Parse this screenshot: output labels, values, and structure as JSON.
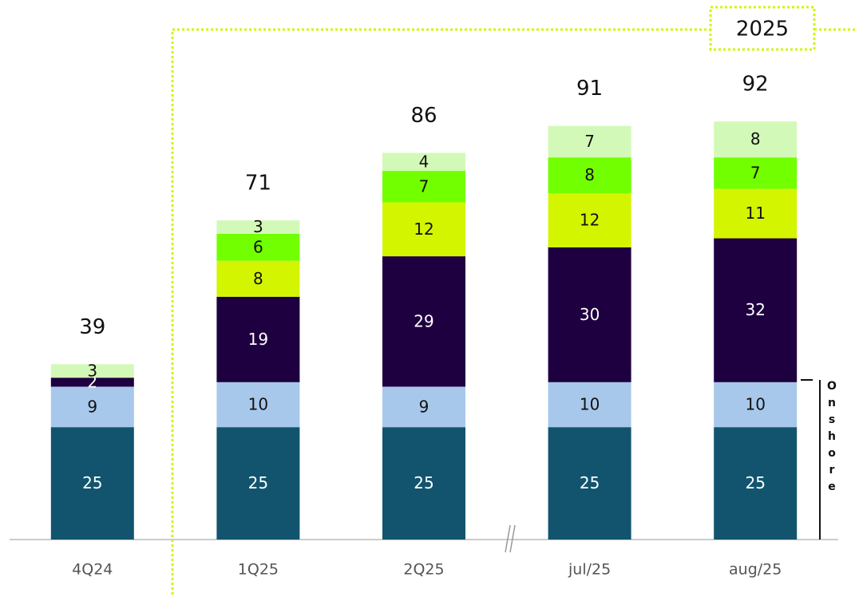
{
  "chart_data": {
    "type": "stacked_bar",
    "categories": [
      "4Q24",
      "1Q25",
      "2Q25",
      "jul/25",
      "aug/25"
    ],
    "series": [
      {
        "color": "#12546e",
        "values": [
          25,
          25,
          25,
          25,
          25
        ]
      },
      {
        "color": "#a7c8ea",
        "values": [
          9,
          10,
          9,
          10,
          10
        ]
      },
      {
        "color": "#1e0040",
        "values": [
          2,
          19,
          29,
          30,
          32
        ]
      },
      {
        "color": "#d4f500",
        "values": [
          null,
          8,
          12,
          12,
          11
        ]
      },
      {
        "color": "#72ff00",
        "values": [
          null,
          6,
          7,
          8,
          7
        ]
      },
      {
        "color": "#d3f9b8",
        "values": [
          3,
          3,
          4,
          7,
          8
        ]
      }
    ],
    "totals": [
      39,
      71,
      86,
      91,
      92
    ],
    "annotations": [
      "2025",
      "Onshore"
    ],
    "ylim": [
      0,
      120
    ]
  }
}
